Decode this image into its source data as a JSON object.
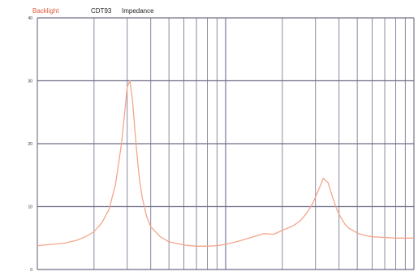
{
  "header": {
    "labels": [
      {
        "text": "Backlight",
        "color": "#e05a3a"
      },
      {
        "text": "CDT93",
        "color": "#222222"
      },
      {
        "text": "Impedance",
        "color": "#222222"
      }
    ]
  },
  "chart_data": {
    "type": "line",
    "title": "",
    "xlabel": "",
    "ylabel": "",
    "x_scale": "log",
    "xlim": [
      10,
      1000
    ],
    "ylim": [
      0,
      40
    ],
    "y_ticks": [
      0,
      10,
      20,
      30,
      40
    ],
    "grid": true,
    "colors": {
      "background": "#ffffff",
      "grid_vertical": "#8a8aa0",
      "grid_horizontal": "#6e6e88",
      "series": "#f4a58a"
    },
    "series": [
      {
        "name": "",
        "x": [
          10,
          12,
          14,
          16,
          18,
          20,
          22,
          24,
          26,
          28,
          29,
          30,
          31,
          32,
          33,
          34,
          35,
          36,
          38,
          40,
          45,
          50,
          60,
          70,
          80,
          90,
          100,
          110,
          120,
          140,
          160,
          180,
          200,
          230,
          250,
          270,
          290,
          310,
          330,
          350,
          370,
          390,
          410,
          430,
          450,
          500,
          550,
          600,
          700,
          800,
          900,
          1000
        ],
        "y": [
          3.8,
          4.0,
          4.2,
          4.6,
          5.2,
          6.0,
          7.4,
          9.5,
          13.5,
          20.0,
          24.5,
          29.0,
          30.0,
          27.0,
          22.0,
          17.5,
          14.0,
          11.5,
          8.5,
          6.8,
          5.2,
          4.4,
          3.9,
          3.7,
          3.7,
          3.8,
          4.0,
          4.3,
          4.6,
          5.2,
          5.7,
          5.6,
          6.2,
          7.0,
          7.8,
          9.0,
          10.5,
          12.5,
          14.5,
          13.8,
          11.5,
          9.5,
          8.2,
          7.2,
          6.6,
          5.8,
          5.4,
          5.2,
          5.1,
          5.0,
          5.0,
          5.0
        ]
      }
    ]
  }
}
